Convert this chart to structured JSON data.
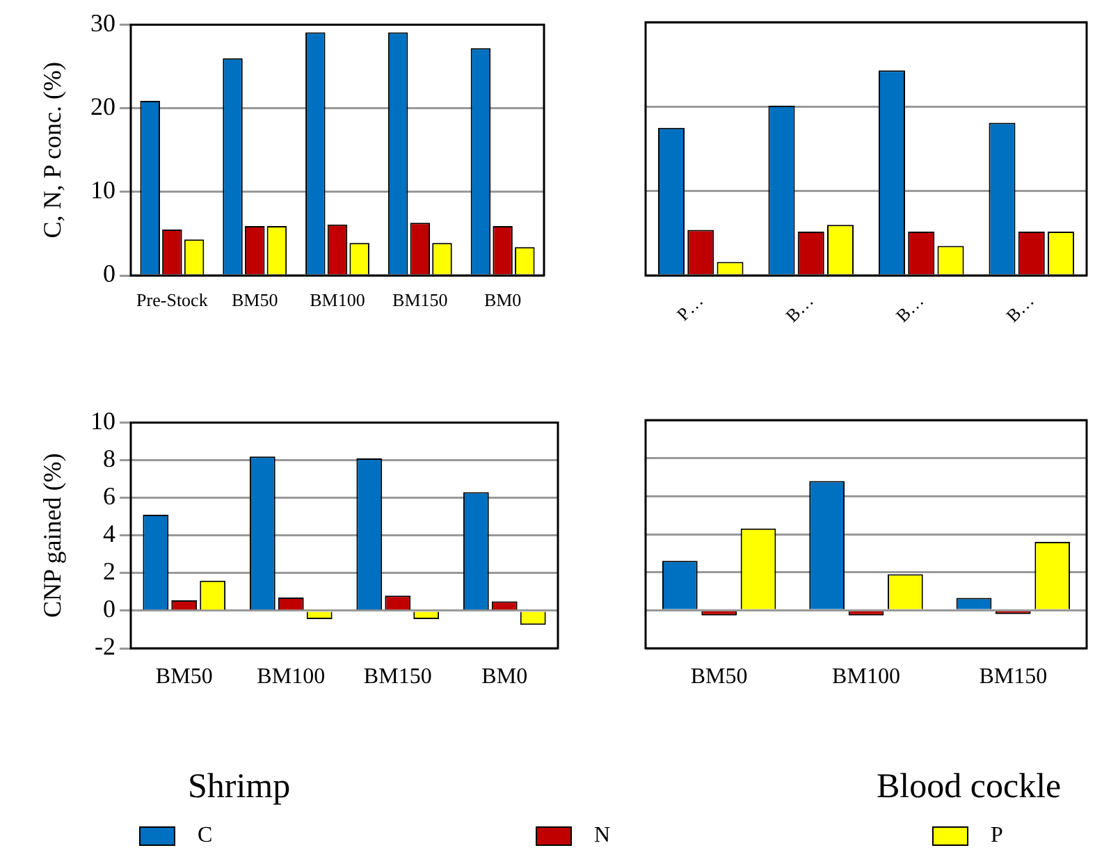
{
  "chart_data": [
    {
      "type": "bar",
      "ylabel": "C, N, P conc. (%)",
      "categories": [
        "Pre-Stock",
        "BM50",
        "BM100",
        "BM150",
        "BM0"
      ],
      "ylim": [
        0,
        30
      ],
      "yticks": [
        0,
        10,
        20,
        30
      ],
      "grid": "y",
      "series": [
        {
          "color": "#0070c0",
          "values": [
            20.9,
            26.0,
            29.1,
            29.1,
            27.2
          ]
        },
        {
          "color": "#c00000",
          "values": [
            5.5,
            5.9,
            6.1,
            6.3,
            5.9
          ]
        },
        {
          "color": "#ffff00",
          "values": [
            4.3,
            5.9,
            3.9,
            3.9,
            3.4
          ]
        }
      ]
    },
    {
      "type": "bar",
      "categories": [
        "P…",
        "B…",
        "B…",
        "B…"
      ],
      "ylim": [
        0,
        30
      ],
      "yticks": [
        0,
        10,
        20,
        30
      ],
      "grid": "y",
      "tick_labels": "x",
      "series": [
        {
          "color": "#0070c0",
          "values": [
            17.5,
            20.1,
            24.3,
            18.1
          ]
        },
        {
          "color": "#c00000",
          "values": [
            5.4,
            5.2,
            5.2,
            5.2
          ]
        },
        {
          "color": "#ffff00",
          "values": [
            1.6,
            6.0,
            3.5,
            5.2
          ]
        }
      ]
    },
    {
      "type": "bar",
      "ylabel": "CNP gained (%)",
      "xlabel": "Shrimp",
      "categories": [
        "BM50",
        "BM100",
        "BM150",
        "BM0"
      ],
      "ylim": [
        -2,
        10
      ],
      "yticks": [
        -2,
        0,
        2,
        4,
        6,
        8,
        10
      ],
      "grid": "y",
      "legend": "bottom",
      "series": [
        {
          "name": "C",
          "color": "#0070c0",
          "values": [
            5.1,
            8.2,
            8.1,
            6.3
          ]
        },
        {
          "name": "N",
          "color": "#c00000",
          "values": [
            0.55,
            0.7,
            0.8,
            0.5
          ]
        },
        {
          "name": "P",
          "color": "#ffff00",
          "values": [
            1.6,
            -0.45,
            -0.45,
            -0.75
          ]
        }
      ]
    },
    {
      "type": "bar",
      "xlabel": "Blood cockle",
      "categories": [
        "BM50",
        "BM100",
        "BM150"
      ],
      "ylim": [
        -2,
        10
      ],
      "yticks": [
        -2,
        0,
        2,
        4,
        6,
        8,
        10
      ],
      "grid": "y",
      "tick_labels": "x",
      "series": [
        {
          "color": "#0070c0",
          "values": [
            2.6,
            6.8,
            0.65
          ]
        },
        {
          "color": "#c00000",
          "values": [
            -0.27,
            -0.27,
            -0.2
          ]
        },
        {
          "color": "#ffff00",
          "values": [
            4.3,
            1.9,
            3.6
          ]
        }
      ]
    }
  ]
}
